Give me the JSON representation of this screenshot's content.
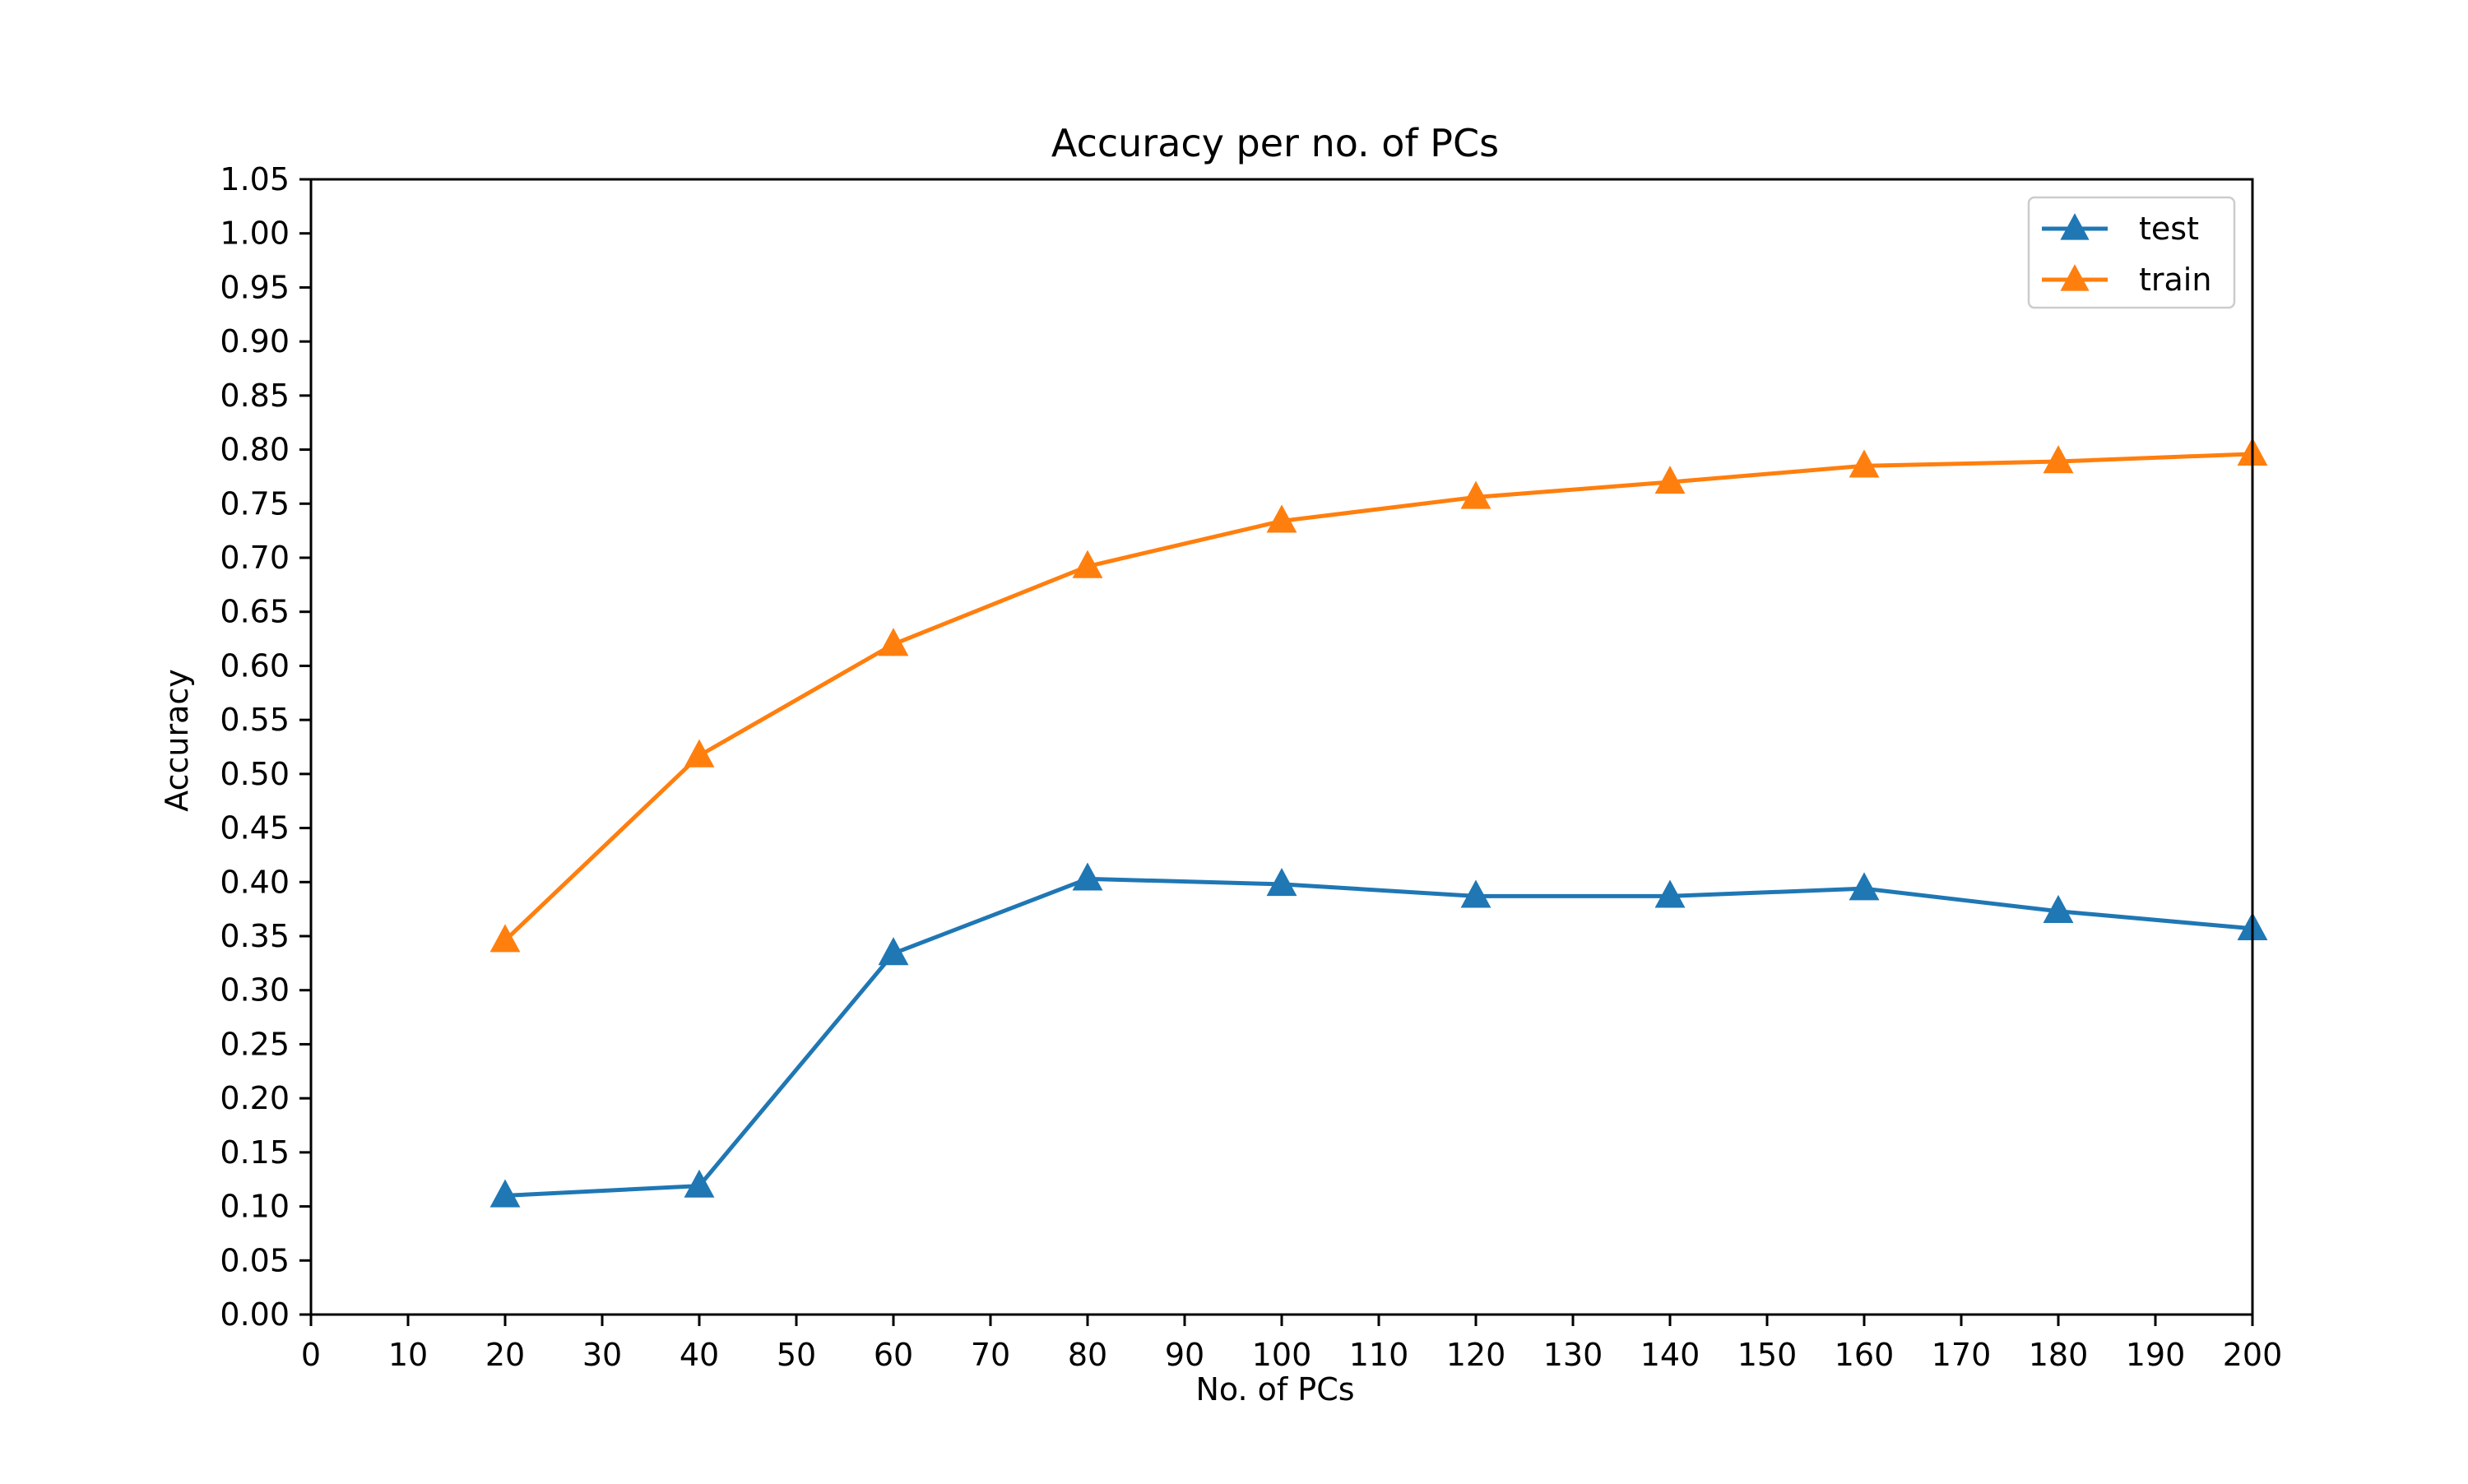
{
  "chart_data": {
    "type": "line",
    "title": "Accuracy per no. of PCs",
    "xlabel": "No. of PCs",
    "ylabel": "Accuracy",
    "xlim": [
      0,
      200
    ],
    "ylim": [
      0,
      1.05
    ],
    "xticks": [
      "0",
      "10",
      "20",
      "30",
      "40",
      "50",
      "60",
      "70",
      "80",
      "90",
      "100",
      "110",
      "120",
      "130",
      "140",
      "150",
      "160",
      "170",
      "180",
      "190",
      "200"
    ],
    "yticks": [
      "0.00",
      "0.05",
      "0.10",
      "0.15",
      "0.20",
      "0.25",
      "0.30",
      "0.35",
      "0.40",
      "0.45",
      "0.50",
      "0.55",
      "0.60",
      "0.65",
      "0.70",
      "0.75",
      "0.80",
      "0.85",
      "0.90",
      "0.95",
      "1.00",
      "1.05"
    ],
    "x": [
      20,
      40,
      60,
      80,
      100,
      120,
      140,
      160,
      180,
      200
    ],
    "series": [
      {
        "name": "test",
        "color": "#1f77b4",
        "marker": "triangle-up",
        "values": [
          0.11,
          0.119,
          0.334,
          0.403,
          0.398,
          0.387,
          0.387,
          0.394,
          0.373,
          0.357
        ]
      },
      {
        "name": "train",
        "color": "#ff7f0e",
        "marker": "triangle-up",
        "values": [
          0.346,
          0.517,
          0.62,
          0.692,
          0.734,
          0.756,
          0.77,
          0.785,
          0.789,
          0.796
        ]
      }
    ],
    "grid": false,
    "legend_position": "top-right"
  }
}
